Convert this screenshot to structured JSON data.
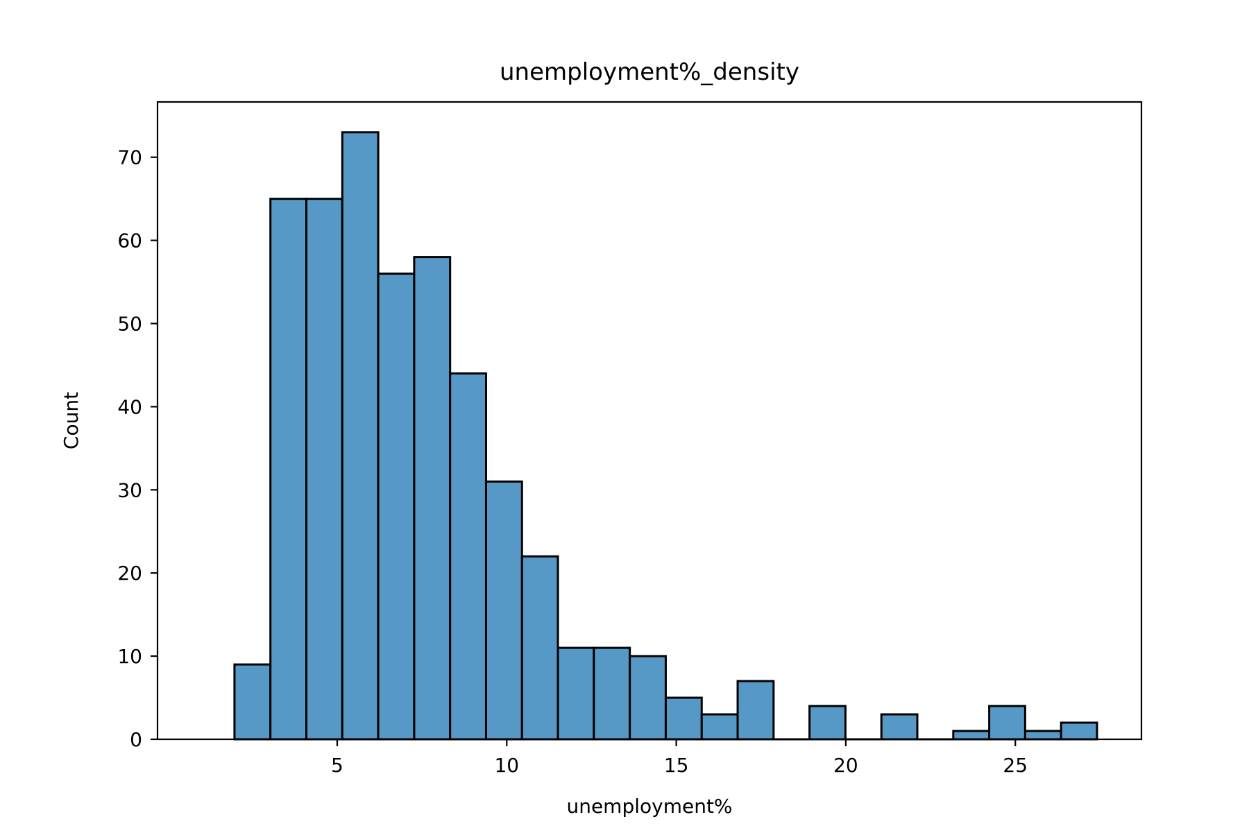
{
  "chart_data": {
    "type": "bar",
    "title": "unemployment%_density",
    "xlabel": "unemployment%",
    "ylabel": "Count",
    "bin_edges": [
      1.97,
      3.03,
      4.09,
      5.15,
      6.21,
      7.27,
      8.33,
      9.39,
      10.45,
      11.51,
      12.57,
      13.63,
      14.69,
      15.75,
      16.81,
      17.87,
      18.93,
      19.99,
      21.05,
      22.11,
      23.17,
      24.23,
      25.29,
      26.35,
      27.41
    ],
    "values": [
      9,
      65,
      65,
      73,
      56,
      58,
      44,
      31,
      22,
      11,
      11,
      10,
      5,
      3,
      7,
      0,
      4,
      0,
      3,
      0,
      1,
      4,
      1,
      2
    ],
    "xlim": [
      -0.3,
      28.72
    ],
    "ylim": [
      0,
      76.65
    ],
    "x_ticks": [
      5,
      10,
      15,
      20,
      25
    ],
    "y_ticks": [
      0,
      10,
      20,
      30,
      40,
      50,
      60,
      70
    ],
    "bar_color": "#5698c6",
    "edge_color": "#000000",
    "grid": false
  }
}
